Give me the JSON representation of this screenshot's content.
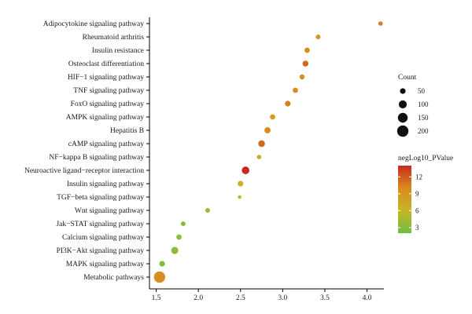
{
  "chart_data": {
    "type": "scatter",
    "title": "",
    "xlabel": "",
    "ylabel": "",
    "xlim": [
      1.42,
      4.2
    ],
    "xticks": [
      "1.5",
      "2.0",
      "2.5",
      "3.0",
      "3.5",
      "4.0"
    ],
    "xtick_values": [
      1.5,
      2.0,
      2.5,
      3.0,
      3.5,
      4.0
    ],
    "grid": false,
    "categories": [
      "Adipocytokine signaling pathway",
      "Rheumatoid arthritis",
      "Insulin resistance",
      "Osteoclast differentiation",
      "HIF−1 signaling pathway",
      "TNF signaling pathway",
      "FoxO signaling pathway",
      "AMPK signaling pathway",
      "Hepatitis B",
      "cAMP signaling pathway",
      "NF−kappa B signaling pathway",
      "Neuroactive ligand−receptor interaction",
      "Insulin signaling pathway",
      "TGF−beta signaling pathway",
      "Wnt signaling pathway",
      "Jak−STAT signaling pathway",
      "Calcium signaling pathway",
      "PI3K−Akt signaling pathway",
      "MAPK signaling pathway",
      "Metabolic pathways"
    ],
    "points": [
      {
        "pathway": "Adipocytokine signaling pathway",
        "x": 4.16,
        "count": 30,
        "negLog10_PValue": 10.5
      },
      {
        "pathway": "Rheumatoid arthritis",
        "x": 3.42,
        "count": 35,
        "negLog10_PValue": 9.0
      },
      {
        "pathway": "Insulin resistance",
        "x": 3.29,
        "count": 45,
        "negLog10_PValue": 10.0
      },
      {
        "pathway": "Osteoclast differentiation",
        "x": 3.27,
        "count": 55,
        "negLog10_PValue": 11.5
      },
      {
        "pathway": "HIF−1 signaling pathway",
        "x": 3.23,
        "count": 40,
        "negLog10_PValue": 9.5
      },
      {
        "pathway": "TNF signaling pathway",
        "x": 3.15,
        "count": 45,
        "negLog10_PValue": 10.0
      },
      {
        "pathway": "FoxO signaling pathway",
        "x": 3.06,
        "count": 50,
        "negLog10_PValue": 10.5
      },
      {
        "pathway": "AMPK signaling pathway",
        "x": 2.88,
        "count": 45,
        "negLog10_PValue": 8.0
      },
      {
        "pathway": "Hepatitis B",
        "x": 2.82,
        "count": 60,
        "negLog10_PValue": 9.5
      },
      {
        "pathway": "cAMP signaling pathway",
        "x": 2.75,
        "count": 70,
        "negLog10_PValue": 11.5
      },
      {
        "pathway": "NF−kappa B signaling pathway",
        "x": 2.72,
        "count": 30,
        "negLog10_PValue": 7.0
      },
      {
        "pathway": "Neuroactive ligand−receptor interaction",
        "x": 2.56,
        "count": 90,
        "negLog10_PValue": 14.0
      },
      {
        "pathway": "Insulin signaling pathway",
        "x": 2.5,
        "count": 50,
        "negLog10_PValue": 6.5
      },
      {
        "pathway": "TGF−beta signaling pathway",
        "x": 2.49,
        "count": 20,
        "negLog10_PValue": 5.5
      },
      {
        "pathway": "Wnt signaling pathway",
        "x": 2.11,
        "count": 35,
        "negLog10_PValue": 4.0
      },
      {
        "pathway": "Jak−STAT signaling pathway",
        "x": 1.82,
        "count": 35,
        "negLog10_PValue": 3.5
      },
      {
        "pathway": "Calcium signaling pathway",
        "x": 1.77,
        "count": 45,
        "negLog10_PValue": 3.5
      },
      {
        "pathway": "PI3K−Akt signaling pathway",
        "x": 1.72,
        "count": 80,
        "negLog10_PValue": 3.5
      },
      {
        "pathway": "MAPK signaling pathway",
        "x": 1.57,
        "count": 50,
        "negLog10_PValue": 3.0
      },
      {
        "pathway": "Metabolic pathways",
        "x": 1.54,
        "count": 200,
        "negLog10_PValue": 9.5
      }
    ],
    "size_legend": {
      "title": "Count",
      "values": [
        50,
        100,
        150,
        200
      ],
      "labels": [
        "50",
        "100",
        "150",
        "200"
      ]
    },
    "color_legend": {
      "title": "negLog10_PValue",
      "min": 2,
      "max": 14,
      "ticks": [
        12,
        9,
        6,
        3
      ],
      "labels": [
        "12",
        "9",
        "6",
        "3"
      ],
      "colors": [
        "#6fbe44",
        "#c8b526",
        "#d98b1f",
        "#c82a20"
      ]
    }
  }
}
